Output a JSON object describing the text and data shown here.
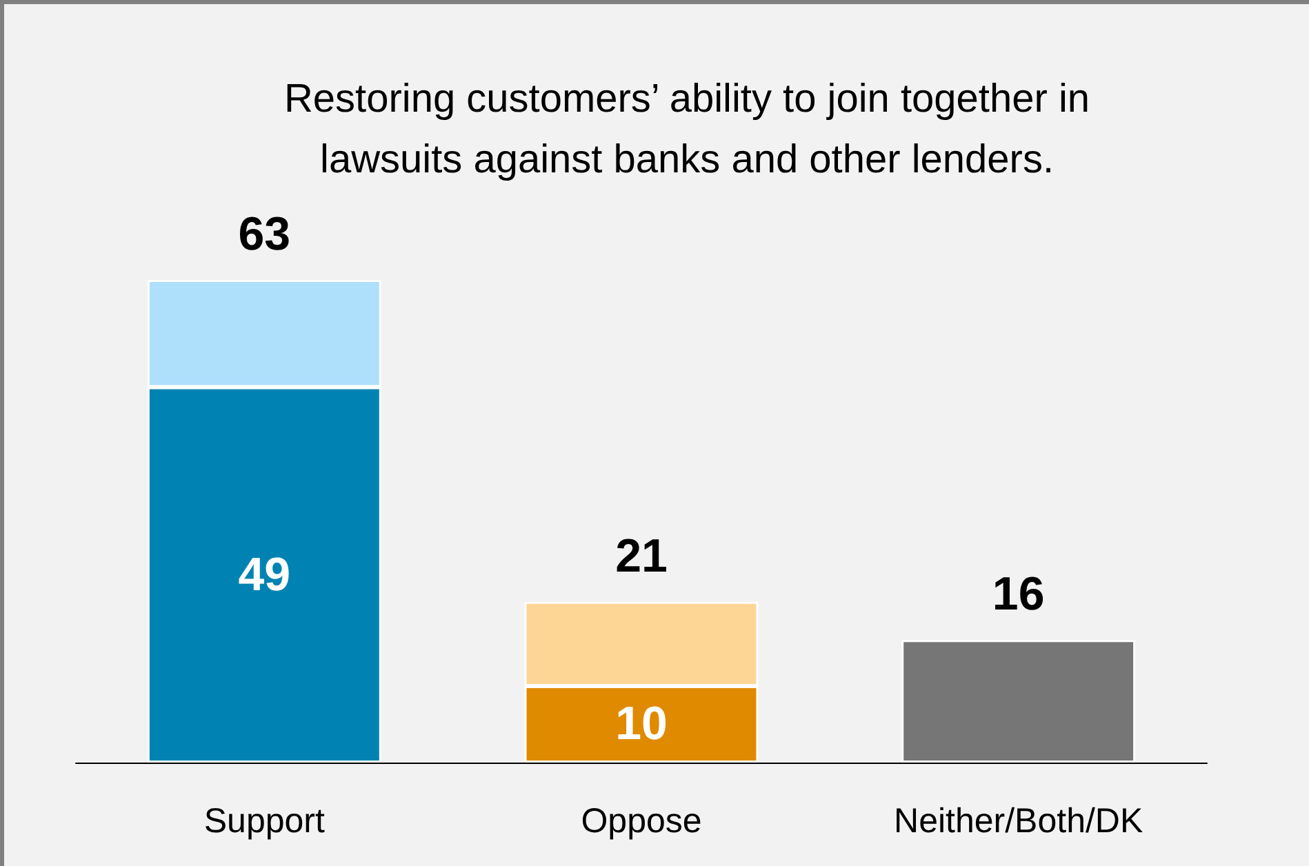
{
  "chart_data": {
    "type": "bar",
    "title": "Restoring customers’ ability to join together in\nlawsuits against banks and other lenders.",
    "categories": [
      "Support",
      "Oppose",
      "Neither/Both/DK"
    ],
    "stacked": true,
    "series": [
      {
        "colors": [
          "#0083b3",
          "#e08a00",
          "#767676"
        ],
        "values": [
          49,
          10,
          16
        ],
        "value_labels": [
          "49",
          "10",
          null
        ]
      },
      {
        "colors": [
          "#aee0fc",
          "#fdd595",
          "#767676"
        ],
        "values": [
          14,
          11,
          null
        ]
      }
    ],
    "totals": [
      "63",
      "21",
      "16"
    ]
  }
}
